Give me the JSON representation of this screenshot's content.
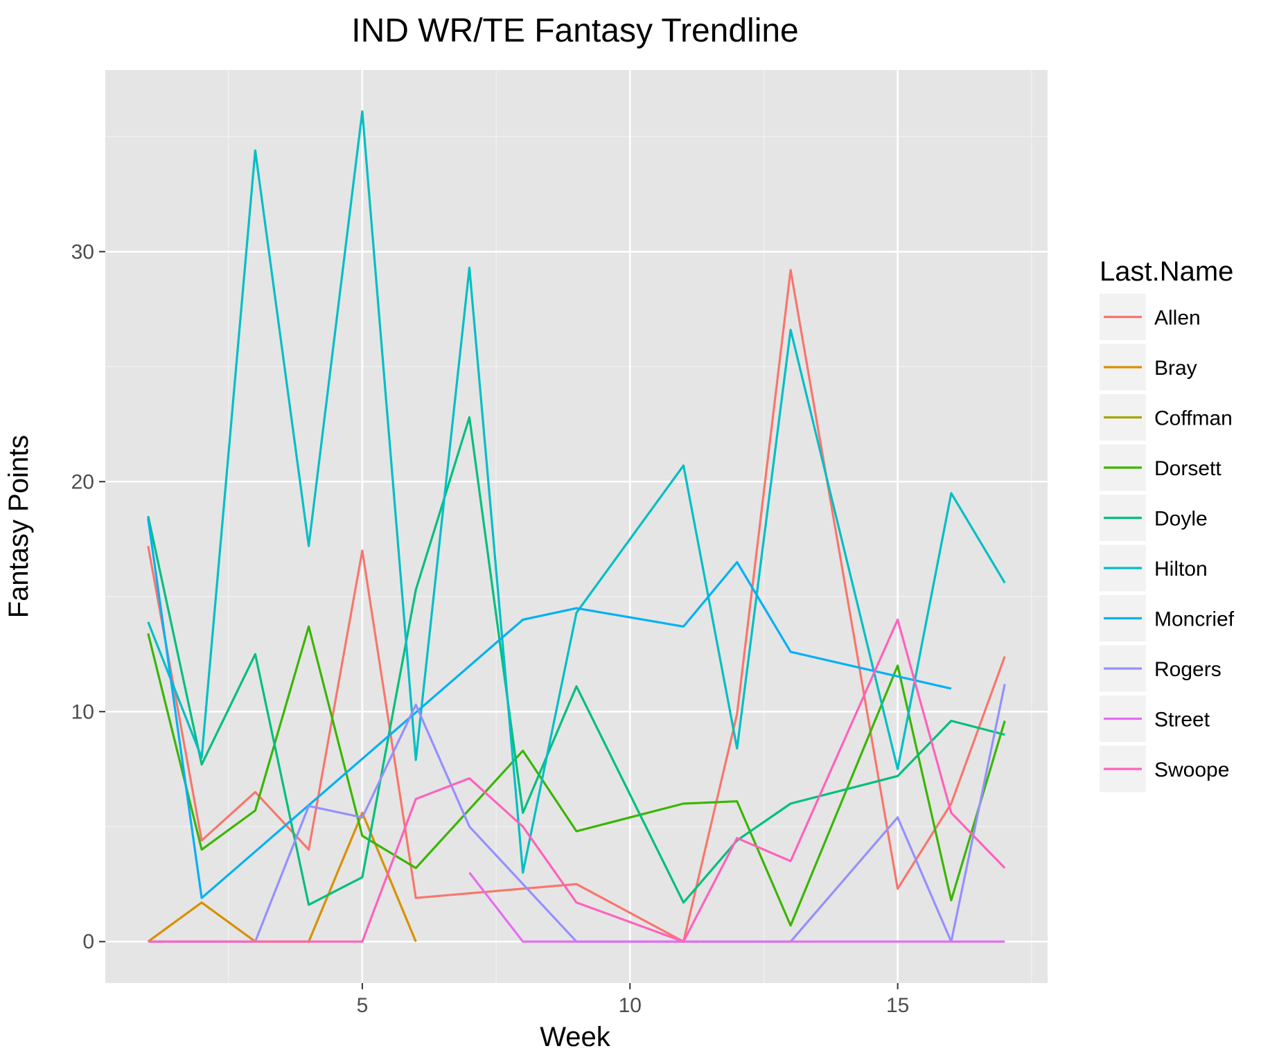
{
  "chart_data": {
    "type": "line",
    "title": "IND WR/TE Fantasy Trendline",
    "xlabel": "Week",
    "ylabel": "Fantasy Points",
    "xlim": [
      0.2,
      17.8
    ],
    "ylim": [
      -1.8,
      37.9
    ],
    "x_ticks": [
      5,
      10,
      15
    ],
    "x_tick_labels": [
      "5",
      "10",
      "15"
    ],
    "x_minor_ticks": [
      2.5,
      7.5,
      12.5,
      17.5
    ],
    "y_ticks": [
      0,
      10,
      20,
      30
    ],
    "y_tick_labels": [
      "0",
      "10",
      "20",
      "30"
    ],
    "y_minor_ticks": [
      5,
      15,
      25,
      35
    ],
    "grid": true,
    "panel_background": "#e5e5e5",
    "legend": {
      "title": "Last.Name",
      "position": "right"
    },
    "series": [
      {
        "name": "Allen",
        "color": "#F8766D",
        "points": [
          [
            1,
            17.2
          ],
          [
            2,
            4.4
          ],
          [
            3,
            6.5
          ],
          [
            4,
            4.0
          ],
          [
            5,
            17.0
          ],
          [
            6,
            1.9
          ],
          [
            9,
            2.5
          ],
          [
            11,
            0.0
          ],
          [
            12,
            9.9
          ],
          [
            13,
            29.2
          ],
          [
            15,
            2.3
          ],
          [
            16,
            6.0
          ],
          [
            17,
            12.4
          ]
        ]
      },
      {
        "name": "Bray",
        "color": "#D89000",
        "points": [
          [
            1,
            0.0
          ],
          [
            2,
            1.7
          ],
          [
            3,
            0.0
          ],
          [
            4,
            0.0
          ],
          [
            5,
            5.6
          ],
          [
            6,
            0.0
          ]
        ]
      },
      {
        "name": "Coffman",
        "color": "#A3A500",
        "points": []
      },
      {
        "name": "Dorsett",
        "color": "#39B600",
        "points": [
          [
            1,
            13.4
          ],
          [
            2,
            4.0
          ],
          [
            3,
            5.7
          ],
          [
            4,
            13.7
          ],
          [
            5,
            4.6
          ],
          [
            6,
            3.2
          ],
          [
            8,
            8.3
          ],
          [
            9,
            4.8
          ],
          [
            11,
            6.0
          ],
          [
            12,
            6.1
          ],
          [
            13,
            0.7
          ],
          [
            15,
            12.0
          ],
          [
            16,
            1.8
          ],
          [
            17,
            9.6
          ]
        ]
      },
      {
        "name": "Doyle",
        "color": "#00BF7D",
        "points": [
          [
            1,
            18.5
          ],
          [
            2,
            7.7
          ],
          [
            3,
            12.5
          ],
          [
            4,
            1.6
          ],
          [
            5,
            2.8
          ],
          [
            6,
            15.3
          ],
          [
            7,
            22.8
          ],
          [
            8,
            5.6
          ],
          [
            9,
            11.1
          ],
          [
            11,
            1.7
          ],
          [
            12,
            4.4
          ],
          [
            13,
            6.0
          ],
          [
            15,
            7.2
          ],
          [
            16,
            9.6
          ],
          [
            17,
            9.0
          ]
        ]
      },
      {
        "name": "Hilton",
        "color": "#00BFC4",
        "points": [
          [
            1,
            13.9
          ],
          [
            2,
            8.0
          ],
          [
            3,
            34.4
          ],
          [
            4,
            17.2
          ],
          [
            5,
            36.1
          ],
          [
            6,
            7.9
          ],
          [
            7,
            29.3
          ],
          [
            8,
            3.0
          ],
          [
            9,
            14.3
          ],
          [
            11,
            20.7
          ],
          [
            12,
            8.4
          ],
          [
            13,
            26.6
          ],
          [
            15,
            7.5
          ],
          [
            16,
            19.5
          ],
          [
            17,
            15.6
          ]
        ]
      },
      {
        "name": "Moncrief",
        "color": "#00B0F6",
        "points": [
          [
            1,
            18.4
          ],
          [
            2,
            1.9
          ],
          [
            8,
            14.0
          ],
          [
            9,
            14.5
          ],
          [
            11,
            13.7
          ],
          [
            12,
            16.5
          ],
          [
            13,
            12.6
          ],
          [
            16,
            11.0
          ]
        ]
      },
      {
        "name": "Rogers",
        "color": "#9590FF",
        "points": [
          [
            1,
            0.0
          ],
          [
            2,
            0.0
          ],
          [
            3,
            0.0
          ],
          [
            4,
            5.9
          ],
          [
            5,
            5.4
          ],
          [
            6,
            10.3
          ],
          [
            7,
            5.0
          ],
          [
            9,
            0.0
          ],
          [
            11,
            0.0
          ],
          [
            12,
            0.0
          ],
          [
            13,
            0.0
          ],
          [
            15,
            5.4
          ],
          [
            16,
            0.0
          ],
          [
            17,
            11.2
          ]
        ]
      },
      {
        "name": "Street",
        "color": "#E76BF3",
        "points": [
          [
            7,
            3.0
          ],
          [
            8,
            0.0
          ],
          [
            9,
            0.0
          ],
          [
            11,
            0.0
          ],
          [
            12,
            0.0
          ],
          [
            13,
            0.0
          ],
          [
            15,
            0.0
          ],
          [
            16,
            0.0
          ],
          [
            17,
            0.0
          ]
        ]
      },
      {
        "name": "Swoope",
        "color": "#FF62BC",
        "points": [
          [
            1,
            0.0
          ],
          [
            2,
            0.0
          ],
          [
            3,
            0.0
          ],
          [
            4,
            0.0
          ],
          [
            5,
            0.0
          ],
          [
            6,
            6.2
          ],
          [
            7,
            7.1
          ],
          [
            8,
            5.0
          ],
          [
            9,
            1.7
          ],
          [
            11,
            0.0
          ],
          [
            12,
            4.5
          ],
          [
            13,
            3.5
          ],
          [
            15,
            14.0
          ],
          [
            16,
            5.6
          ],
          [
            17,
            3.2
          ]
        ]
      }
    ]
  }
}
